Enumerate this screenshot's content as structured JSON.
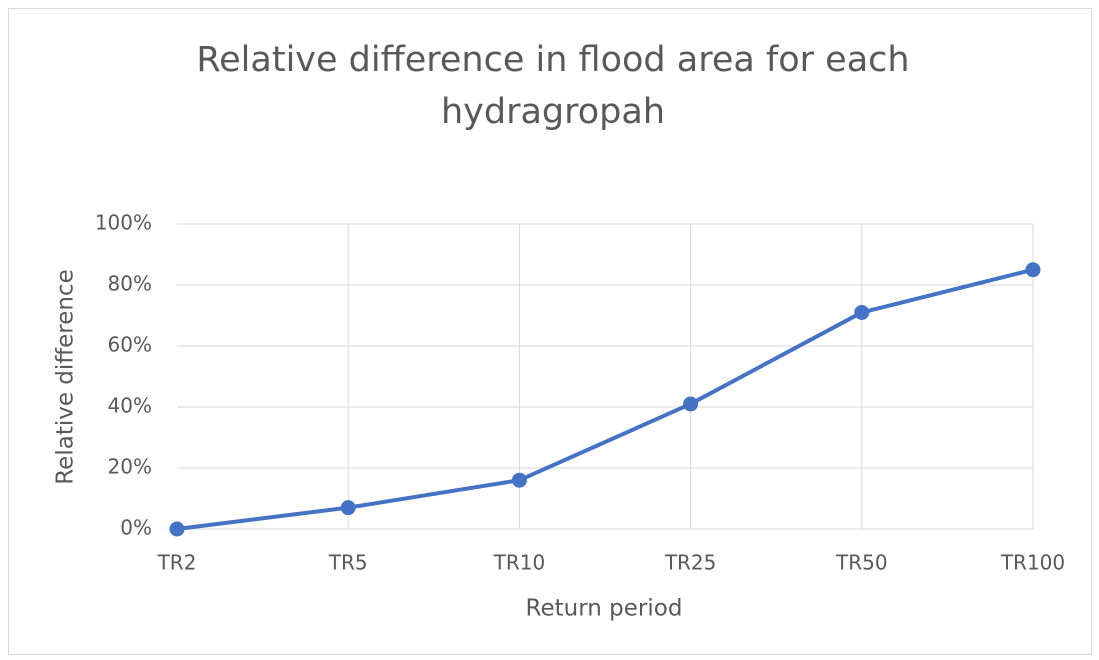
{
  "chart_data": {
    "type": "line",
    "title": "Relative difference in flood area for each hydragropah",
    "x_label": "Return period",
    "y_label": "Relative difference",
    "categories": [
      "TR2",
      "TR5",
      "TR10",
      "TR25",
      "TR50",
      "TR100"
    ],
    "series": [
      {
        "name": "Relative difference",
        "color": "#4472c4",
        "values": [
          0,
          7,
          16,
          41,
          71,
          85
        ]
      }
    ],
    "ylim": [
      0,
      100
    ],
    "yticks": [
      {
        "value": 0,
        "label": "0%"
      },
      {
        "value": 20,
        "label": "20%"
      },
      {
        "value": 40,
        "label": "40%"
      },
      {
        "value": 60,
        "label": "60%"
      },
      {
        "value": 80,
        "label": "80%"
      },
      {
        "value": 100,
        "label": "100%"
      }
    ],
    "grid": true
  }
}
